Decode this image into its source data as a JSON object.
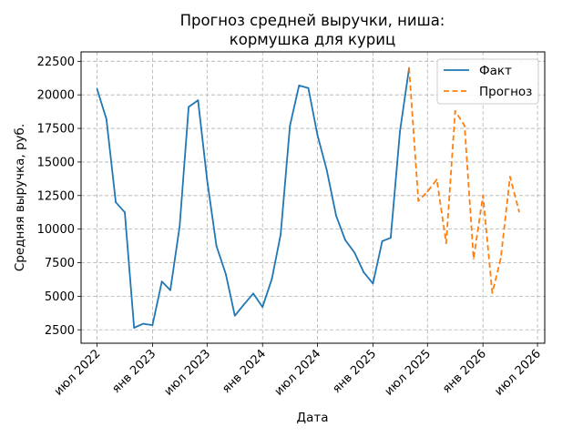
{
  "chart_data": {
    "type": "line",
    "title_lines": [
      "Прогноз средней выручки, ниша:",
      "кормушка для куриц"
    ],
    "xlabel": "Дата",
    "ylabel": "Средняя выручка, руб.",
    "xlim": [
      "2022-05-09",
      "2026-07-25"
    ],
    "ylim": [
      1500,
      23200
    ],
    "grid": true,
    "legend_position": "top-right",
    "x_ticks": [
      {
        "date": "2022-07-01",
        "label": "июл 2022"
      },
      {
        "date": "2023-01-01",
        "label": "янв 2023"
      },
      {
        "date": "2023-07-01",
        "label": "июл 2023"
      },
      {
        "date": "2024-01-01",
        "label": "янв 2024"
      },
      {
        "date": "2024-07-01",
        "label": "июл 2024"
      },
      {
        "date": "2025-01-01",
        "label": "янв 2025"
      },
      {
        "date": "2025-07-01",
        "label": "июл 2025"
      },
      {
        "date": "2026-01-01",
        "label": "янв 2026"
      },
      {
        "date": "2026-07-01",
        "label": "июл 2026"
      }
    ],
    "y_ticks": [
      2500,
      5000,
      7500,
      10000,
      12500,
      15000,
      17500,
      20000,
      22500
    ],
    "series": [
      {
        "name": "Факт",
        "color": "#1f77b4",
        "style": "solid",
        "points": [
          [
            "2022-07-01",
            20450
          ],
          [
            "2022-08-01",
            18200
          ],
          [
            "2022-09-01",
            12000
          ],
          [
            "2022-10-01",
            11250
          ],
          [
            "2022-11-01",
            2650
          ],
          [
            "2022-12-01",
            2950
          ],
          [
            "2023-01-01",
            2850
          ],
          [
            "2023-02-01",
            6100
          ],
          [
            "2023-03-01",
            5450
          ],
          [
            "2023-04-01",
            10200
          ],
          [
            "2023-05-01",
            19100
          ],
          [
            "2023-06-01",
            19600
          ],
          [
            "2023-07-01",
            13700
          ],
          [
            "2023-08-01",
            8750
          ],
          [
            "2023-09-01",
            6650
          ],
          [
            "2023-10-01",
            3550
          ],
          [
            "2023-11-01",
            4400
          ],
          [
            "2023-12-01",
            5200
          ],
          [
            "2024-01-01",
            4200
          ],
          [
            "2024-02-01",
            6300
          ],
          [
            "2024-03-01",
            9600
          ],
          [
            "2024-04-01",
            17700
          ],
          [
            "2024-05-01",
            20700
          ],
          [
            "2024-06-01",
            20500
          ],
          [
            "2024-07-01",
            17000
          ],
          [
            "2024-08-01",
            14400
          ],
          [
            "2024-09-01",
            11000
          ],
          [
            "2024-10-01",
            9200
          ],
          [
            "2024-11-01",
            8250
          ],
          [
            "2024-12-01",
            6800
          ],
          [
            "2025-01-01",
            5950
          ],
          [
            "2025-02-01",
            9100
          ],
          [
            "2025-03-01",
            9350
          ],
          [
            "2025-04-01",
            17300
          ],
          [
            "2025-05-01",
            22000
          ]
        ]
      },
      {
        "name": "Прогноз",
        "color": "#ff7f0e",
        "style": "dashed",
        "points": [
          [
            "2025-05-01",
            22000
          ],
          [
            "2025-06-01",
            12100
          ],
          [
            "2025-07-01",
            12800
          ],
          [
            "2025-08-01",
            13700
          ],
          [
            "2025-09-01",
            8950
          ],
          [
            "2025-10-01",
            18800
          ],
          [
            "2025-11-01",
            17700
          ],
          [
            "2025-12-01",
            7800
          ],
          [
            "2026-01-01",
            12500
          ],
          [
            "2026-02-01",
            5250
          ],
          [
            "2026-03-01",
            7800
          ],
          [
            "2026-04-01",
            13900
          ],
          [
            "2026-05-01",
            11300
          ]
        ]
      }
    ]
  }
}
